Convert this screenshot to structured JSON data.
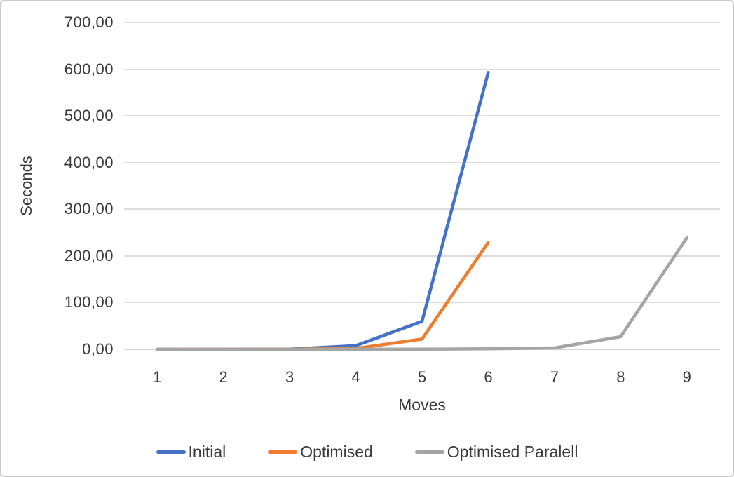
{
  "chart_data": {
    "type": "line",
    "title": "",
    "xlabel": "Moves",
    "ylabel": "Seconds",
    "categories": [
      "1",
      "2",
      "3",
      "4",
      "5",
      "6",
      "7",
      "8",
      "9"
    ],
    "y_ticks": [
      "0,00",
      "100,00",
      "200,00",
      "300,00",
      "400,00",
      "500,00",
      "600,00",
      "700,00"
    ],
    "ylim": [
      0,
      700
    ],
    "grid": true,
    "legend_position": "bottom",
    "series": [
      {
        "name": "Initial",
        "color": "#4472C4",
        "x": [
          1,
          2,
          3,
          4,
          5,
          6
        ],
        "values": [
          0.05,
          0.1,
          0.5,
          8,
          60,
          593
        ]
      },
      {
        "name": "Optimised",
        "color": "#ED7D31",
        "x": [
          1,
          2,
          3,
          4,
          5,
          6
        ],
        "values": [
          0.02,
          0.05,
          0.2,
          2,
          22,
          229
        ]
      },
      {
        "name": "Optimised Paralell",
        "color": "#A5A5A5",
        "x": [
          1,
          2,
          3,
          4,
          5,
          6,
          7,
          8,
          9
        ],
        "values": [
          0.02,
          0.03,
          0.05,
          0.1,
          0.3,
          1,
          3,
          27,
          239
        ]
      }
    ]
  },
  "colors": {
    "gridline": "#dcdcdc",
    "axis_text": "#3a3a3a",
    "chart_border": "#c9c9c9",
    "background": "#ffffff"
  }
}
